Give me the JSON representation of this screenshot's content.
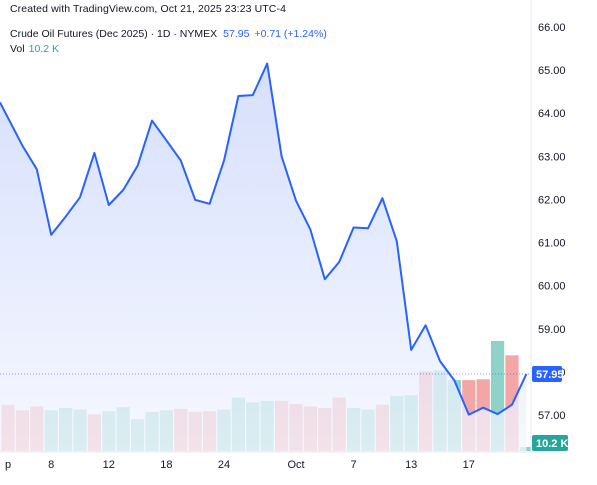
{
  "attribution": "Created with TradingView.com, Oct 21, 2025 23:23 UTC-4",
  "legend": {
    "symbol": "Crude Oil Futures (Dec 2025) · 1D · NYMEX",
    "last": "57.95",
    "change": "+0.71 (+1.24%)",
    "vol_label": "Vol",
    "vol_value": "10.2 K"
  },
  "colors": {
    "line": "#2962ff",
    "area_top": "#c9d5fb",
    "area_bottom": "#f3f6ff",
    "vol_up": "#8fd3c8",
    "vol_down": "#f4a5a6",
    "axis_text": "#131722",
    "last_tag": "#2962ff",
    "vol_tag": "#26a69a"
  },
  "chart_data": {
    "type": "line",
    "title": "Crude Oil Futures (Dec 2025) · 1D · NYMEX",
    "y_ticks": [
      "66.00",
      "65.00",
      "64.00",
      "63.00",
      "62.00",
      "61.00",
      "60.00",
      "59.00",
      "58.00",
      "57.00"
    ],
    "ylim": [
      56.3,
      66.1
    ],
    "x_tick_labels": [
      "8",
      "12",
      "18",
      "24",
      "Oct",
      "7",
      "13",
      "17"
    ],
    "x_tick_index": [
      3,
      7,
      11,
      15,
      20,
      24,
      28,
      32
    ],
    "x_left_partial_label": "p",
    "series": [
      {
        "values": [
          64.25,
          63.25,
          62.7,
          61.18,
          61.6,
          62.05,
          63.08,
          61.87,
          62.22,
          62.78,
          63.83,
          63.37,
          62.9,
          61.99,
          61.9,
          62.9,
          64.4,
          64.42,
          65.15,
          63.0,
          61.97,
          61.3,
          60.15,
          60.55,
          61.35,
          61.33,
          62.03,
          61.03,
          58.51,
          59.08,
          58.25,
          57.8,
          57.01,
          57.17,
          57.02,
          57.24,
          57.95
        ]
      }
    ],
    "volume": {
      "values": [
        58,
        51,
        56,
        51,
        54,
        52,
        46,
        50,
        55,
        40,
        49,
        51,
        53,
        49,
        50,
        52,
        67,
        61,
        63,
        63,
        59,
        56,
        54,
        67,
        54,
        52,
        58,
        69,
        70,
        100,
        101,
        89,
        89,
        90,
        138,
        120,
        5
      ],
      "up": [
        false,
        false,
        false,
        true,
        true,
        true,
        false,
        true,
        true,
        true,
        true,
        true,
        false,
        false,
        false,
        true,
        true,
        true,
        true,
        false,
        false,
        false,
        false,
        false,
        true,
        true,
        false,
        true,
        true,
        false,
        true,
        true,
        false,
        false,
        true,
        false,
        true
      ]
    },
    "last_value_label": "57.95",
    "last_volume_label": "10.2 K"
  }
}
